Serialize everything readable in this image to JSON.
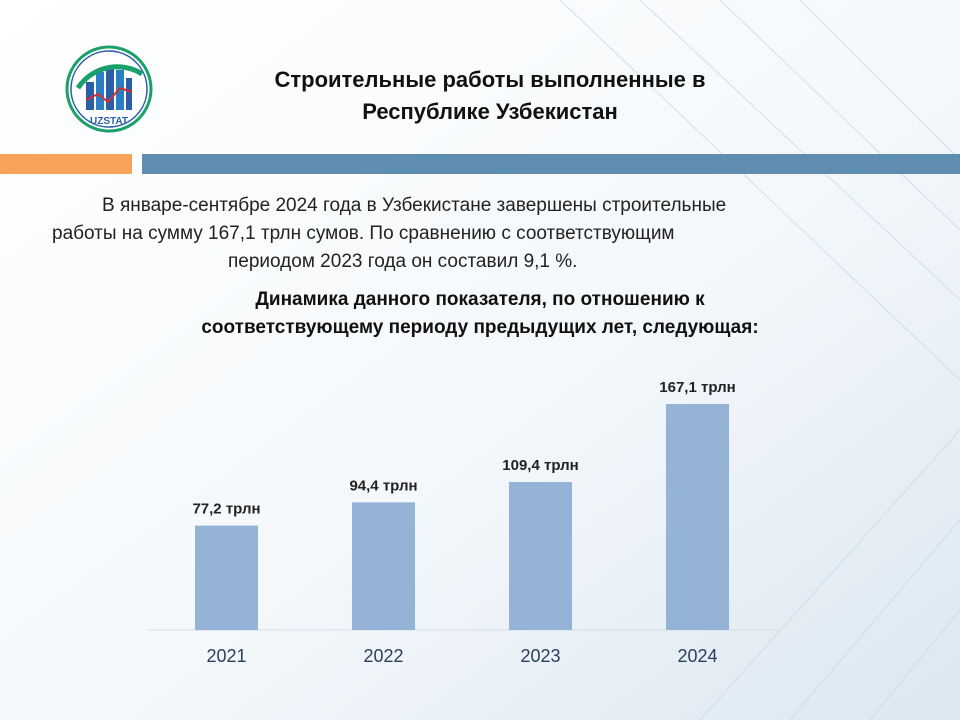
{
  "header": {
    "logo_text": "UZSTAT",
    "title_line1": "Строительные работы выполненные в",
    "title_line2": "Республике Узбекистан"
  },
  "intro": {
    "line1": "В январе-сентябре 2024 года в Узбекистане завершены строительные",
    "line2": "работы на сумму 167,1 трлн сумов. По сравнению с соответствующим",
    "line3": "периодом 2023 года он составил 9,1 %."
  },
  "subtitle": {
    "line1": "Динамика данного показателя, по отношению к",
    "line2": "соответствующему периоду предыдущих лет, следующая:"
  },
  "colors": {
    "bar": "#95b3d7",
    "accent_orange": "#f7a35a",
    "accent_blue": "#5f8db2",
    "logo_green": "#1aa06b",
    "logo_blue": "#2a5fa8",
    "logo_red": "#d62b2b"
  },
  "chart_data": {
    "type": "bar",
    "categories": [
      "2021",
      "2022",
      "2023",
      "2024"
    ],
    "values": [
      77.2,
      94.4,
      109.4,
      167.1
    ],
    "data_labels": [
      "77,2 трлн",
      "94,4 трлн",
      "109,4 трлн",
      "167,1 трлн"
    ],
    "title": "",
    "xlabel": "",
    "ylabel": "",
    "ylim": [
      0,
      167.1
    ],
    "grid": false,
    "legend": "none"
  }
}
